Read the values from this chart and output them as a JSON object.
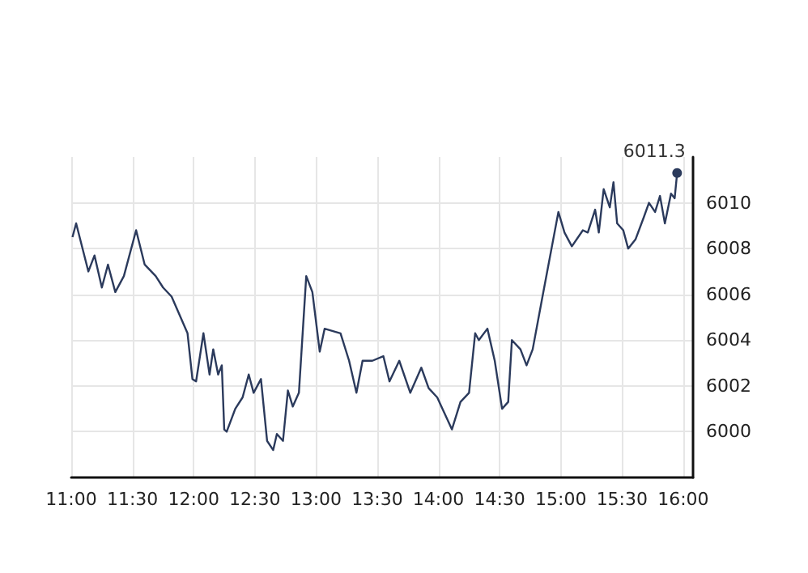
{
  "chart_data": {
    "type": "line",
    "x": [
      11.01,
      11.04,
      11.14,
      11.19,
      11.25,
      11.3,
      11.36,
      11.43,
      11.53,
      11.6,
      11.69,
      11.75,
      11.82,
      11.95,
      11.99,
      12.02,
      12.08,
      12.13,
      12.16,
      12.2,
      12.23,
      12.25,
      12.27,
      12.34,
      12.4,
      12.45,
      12.49,
      12.55,
      12.6,
      12.65,
      12.68,
      12.73,
      12.77,
      12.81,
      12.86,
      12.92,
      12.97,
      13.03,
      13.07,
      13.2,
      13.27,
      13.33,
      13.38,
      13.46,
      13.55,
      13.6,
      13.68,
      13.77,
      13.86,
      13.92,
      13.99,
      14.05,
      14.11,
      14.18,
      14.25,
      14.3,
      14.33,
      14.4,
      14.46,
      14.52,
      14.57,
      14.6,
      14.67,
      14.72,
      14.77,
      14.85,
      14.98,
      15.03,
      15.09,
      15.18,
      15.22,
      15.28,
      15.31,
      15.35,
      15.4,
      15.43,
      15.46,
      15.51,
      15.55,
      15.61,
      15.68,
      15.72,
      15.77,
      15.81,
      15.85,
      15.9,
      15.93,
      15.95
    ],
    "series": [
      {
        "color": "#2b3a5c",
        "values": [
          6008.5,
          6009.1,
          6007.0,
          6007.7,
          6006.3,
          6007.3,
          6006.1,
          6006.8,
          6008.8,
          6007.3,
          6006.8,
          6006.3,
          6005.9,
          6004.3,
          6002.3,
          6002.2,
          6004.3,
          6002.5,
          6003.6,
          6002.5,
          6002.9,
          6000.1,
          6000.0,
          6001.0,
          6001.5,
          6002.5,
          6001.7,
          6002.3,
          5999.6,
          5999.2,
          5999.9,
          5999.6,
          6001.8,
          6001.1,
          6001.7,
          6006.8,
          6006.1,
          6003.5,
          6004.5,
          6004.3,
          6003.1,
          6001.7,
          6003.1,
          6003.1,
          6003.3,
          6002.2,
          6003.1,
          6001.7,
          6002.8,
          6001.9,
          6001.5,
          6000.8,
          6000.1,
          6001.3,
          6001.7,
          6004.3,
          6004.0,
          6004.5,
          6003.1,
          6001.0,
          6001.3,
          6004.0,
          6003.6,
          6002.9,
          6003.6,
          6005.9,
          6009.6,
          6008.7,
          6008.1,
          6008.8,
          6008.7,
          6009.7,
          6008.7,
          6010.6,
          6009.8,
          6010.9,
          6009.1,
          6008.8,
          6008.0,
          6008.4,
          6009.4,
          6010.0,
          6009.6,
          6010.3,
          6009.1,
          6010.4,
          6010.2,
          6011.3
        ],
        "value_labels": [
          null,
          null,
          null,
          null,
          null,
          null,
          null,
          null,
          null,
          null,
          null,
          null,
          null,
          null,
          null,
          null,
          null,
          null,
          null,
          null,
          null,
          null,
          null,
          null,
          null,
          null,
          null,
          null,
          null,
          null,
          null,
          null,
          null,
          null,
          null,
          null,
          null,
          null,
          null,
          null,
          null,
          null,
          null,
          null,
          null,
          null,
          null,
          null,
          null,
          null,
          null,
          null,
          null,
          null,
          null,
          null,
          null,
          null,
          null,
          null,
          null,
          null,
          null,
          null,
          null,
          null,
          null,
          null,
          null,
          null,
          null,
          null,
          null,
          null,
          null,
          null,
          null,
          null,
          null,
          null,
          null,
          null,
          null,
          null,
          null,
          null,
          null,
          "6011.3"
        ]
      }
    ],
    "xlim": [
      11,
      16.08
    ],
    "xticks": [
      {
        "value": 11,
        "label": "11:00"
      },
      {
        "value": 11.5,
        "label": "11:30"
      },
      {
        "value": 12,
        "label": "12:00"
      },
      {
        "value": 12.5,
        "label": "12:30"
      },
      {
        "value": 13,
        "label": "13:00"
      },
      {
        "value": 13.5,
        "label": "13:30"
      },
      {
        "value": 14,
        "label": "14:00"
      },
      {
        "value": 14.5,
        "label": "14:30"
      },
      {
        "value": 15,
        "label": "15:00"
      },
      {
        "value": 15.5,
        "label": "15:30"
      },
      {
        "value": 16,
        "label": "16:00"
      }
    ],
    "ylim": [
      5998,
      6012
    ],
    "yticks": [
      6000,
      6002,
      6004,
      6006,
      6008,
      6010
    ],
    "grid": true,
    "marker": "none",
    "line_style": "solid"
  }
}
